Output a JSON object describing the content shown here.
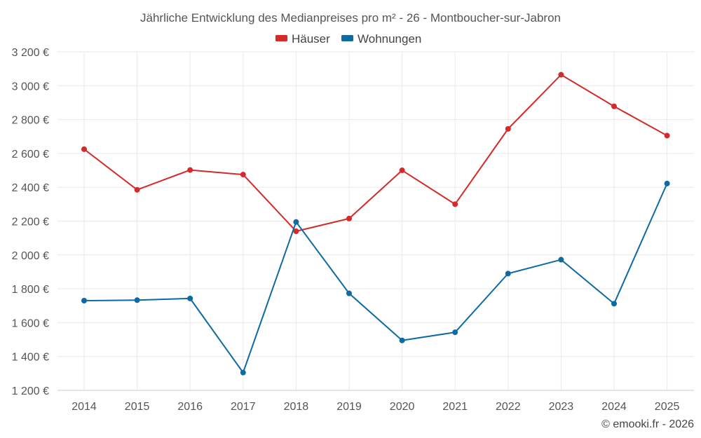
{
  "chart_data": {
    "type": "line",
    "title": "Jährliche Entwicklung des Medianpreises pro m² - 26 - Montboucher-sur-Jabron",
    "categories": [
      "2014",
      "2015",
      "2016",
      "2017",
      "2018",
      "2019",
      "2020",
      "2021",
      "2022",
      "2023",
      "2024",
      "2025"
    ],
    "series": [
      {
        "name": "Häuser",
        "color": "#d42a2a",
        "values": [
          2625,
          2385,
          2502,
          2475,
          2140,
          2215,
          2500,
          2300,
          2745,
          3065,
          2878,
          2705
        ]
      },
      {
        "name": "Wohnungen",
        "color": "#0e6aa0",
        "values": [
          1730,
          1733,
          1743,
          1305,
          2195,
          1773,
          1495,
          1543,
          1890,
          1972,
          1712,
          2422
        ]
      }
    ],
    "yticks": [
      "1 200 €",
      "1 400 €",
      "1 600 €",
      "1 800 €",
      "2 000 €",
      "2 200 €",
      "2 400 €",
      "2 600 €",
      "2 800 €",
      "3 000 €",
      "3 200 €"
    ],
    "ylim": [
      1200,
      3200
    ],
    "xlabel": "",
    "ylabel": "",
    "grid": true,
    "legend_position": "top-center"
  },
  "credit": "© emooki.fr - 2026"
}
